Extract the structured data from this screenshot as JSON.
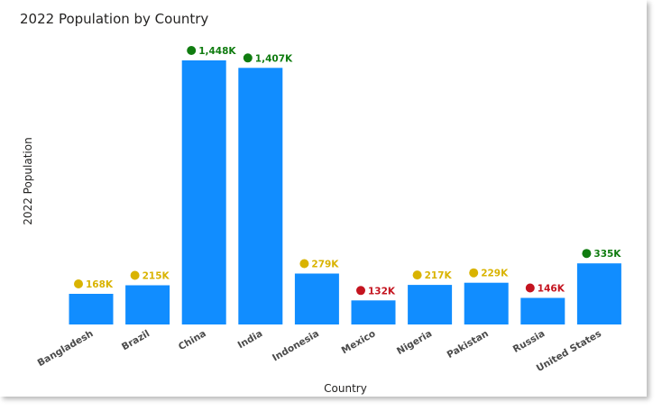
{
  "chart_data": {
    "type": "bar",
    "title": "2022 Population by Country",
    "xlabel": "Country",
    "ylabel": "2022 Population",
    "ylim": [
      0,
      1448
    ],
    "grid": false,
    "categories": [
      "Bangladesh",
      "Brazil",
      "China",
      "India",
      "Indonesia",
      "Mexico",
      "Nigeria",
      "Pakistan",
      "Russia",
      "United States"
    ],
    "series": [
      {
        "values": [
          168,
          215,
          1448,
          1407,
          279,
          132,
          217,
          229,
          146,
          335
        ],
        "color": "#118DFF"
      }
    ],
    "data_labels": [
      "168K",
      "215K",
      "1,448K",
      "1,407K",
      "279K",
      "132K",
      "217K",
      "229K",
      "146K",
      "335K"
    ],
    "label_status": [
      "yellow",
      "yellow",
      "green",
      "green",
      "yellow",
      "red",
      "yellow",
      "yellow",
      "red",
      "green"
    ],
    "status_colors": {
      "green": "#107C10",
      "yellow": "#D9B300",
      "red": "#C4141F"
    }
  }
}
